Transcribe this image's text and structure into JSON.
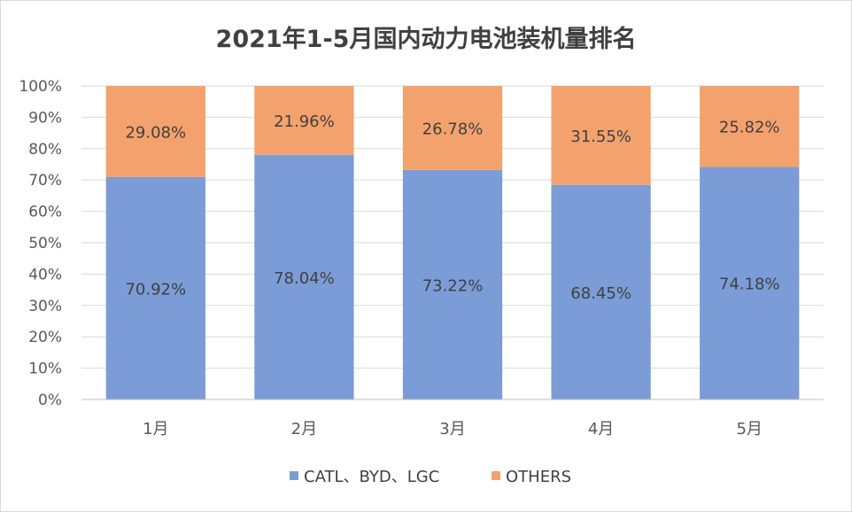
{
  "chart_data": {
    "type": "bar",
    "stacked": true,
    "title": "2021年1-5月国内动力电池装机量排名",
    "categories": [
      "1月",
      "2月",
      "3月",
      "4月",
      "5月"
    ],
    "series": [
      {
        "name": "CATL、BYD、LGC",
        "color": "#7b9cd6",
        "values": [
          70.92,
          78.04,
          73.22,
          68.45,
          74.18
        ],
        "labels": [
          "70.92%",
          "78.04%",
          "73.22%",
          "68.45%",
          "74.18%"
        ]
      },
      {
        "name": "OTHERS",
        "color": "#f4a26d",
        "values": [
          29.08,
          21.96,
          26.78,
          31.55,
          25.82
        ],
        "labels": [
          "29.08%",
          "21.96%",
          "26.78%",
          "31.55%",
          "25.82%"
        ]
      }
    ],
    "ylim": [
      0,
      100
    ],
    "yticks": [
      "0%",
      "10%",
      "20%",
      "30%",
      "40%",
      "50%",
      "60%",
      "70%",
      "80%",
      "90%",
      "100%"
    ],
    "grid": true,
    "legend": "bottom"
  }
}
